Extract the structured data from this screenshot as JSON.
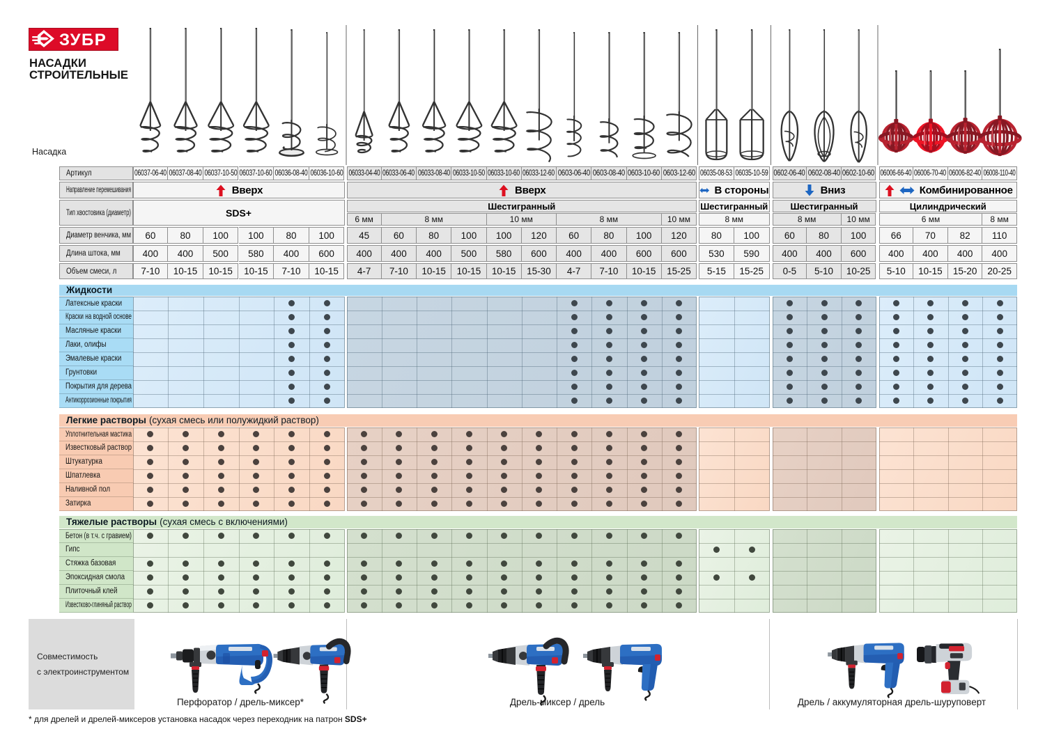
{
  "logo": {
    "text": "ЗУБР",
    "box_color": "#dd0b28",
    "border_color": "#a90d20"
  },
  "title": {
    "line1": "НАСАДКИ",
    "line2": "СТРОИТЕЛЬНЫЕ"
  },
  "row_labels": {
    "nasadka": "Насадка",
    "article": "Артикул",
    "direction": "Направление перемешивания",
    "shank": "Тип хвостовика (диаметр)",
    "diameter": "Диаметр венчика, мм",
    "length": "Длина штока, мм",
    "volume": "Объем смеси, л"
  },
  "groups": [
    {
      "direction": "Вверх",
      "icons": [
        "arrow-up-red"
      ],
      "shank_type": "SDS+",
      "type_merged": true,
      "shade": "light",
      "sizes": [],
      "columns": [
        {
          "article": "06037-06-40",
          "diameter": "60",
          "length": "400",
          "volume": "7-10",
          "mixer": "cone"
        },
        {
          "article": "06037-08-40",
          "diameter": "80",
          "length": "400",
          "volume": "10-15",
          "mixer": "cone"
        },
        {
          "article": "06037-10-50",
          "diameter": "100",
          "length": "500",
          "volume": "10-15",
          "mixer": "cone"
        },
        {
          "article": "06037-10-60",
          "diameter": "100",
          "length": "580",
          "volume": "10-15",
          "mixer": "cone"
        },
        {
          "article": "06036-08-40",
          "diameter": "80",
          "length": "400",
          "volume": "7-10",
          "mixer": "coil-disc"
        },
        {
          "article": "06036-10-60",
          "diameter": "100",
          "length": "600",
          "volume": "10-15",
          "mixer": "coil-ring"
        }
      ]
    },
    {
      "direction": "Вверх",
      "icons": [
        "arrow-up-red"
      ],
      "shank_type": "Шестигранный",
      "type_merged": false,
      "shade": "dark",
      "sizes": [
        {
          "label": "6 мм",
          "span": 1
        },
        {
          "label": "8 мм",
          "span": 3
        },
        {
          "label": "10 мм",
          "span": 2
        },
        {
          "label": "8 мм",
          "span": 3
        },
        {
          "label": "10 мм",
          "span": 1
        }
      ],
      "columns": [
        {
          "article": "06033-04-40",
          "diameter": "45",
          "length": "400",
          "volume": "4-7",
          "mixer": "cone-small"
        },
        {
          "article": "06033-06-40",
          "diameter": "60",
          "length": "400",
          "volume": "7-10",
          "mixer": "cone"
        },
        {
          "article": "06033-08-40",
          "diameter": "80",
          "length": "400",
          "volume": "10-15",
          "mixer": "cone"
        },
        {
          "article": "06033-10-50",
          "diameter": "100",
          "length": "500",
          "volume": "10-15",
          "mixer": "cone"
        },
        {
          "article": "06033-10-60",
          "diameter": "100",
          "length": "580",
          "volume": "10-15",
          "mixer": "cone"
        },
        {
          "article": "06033-12-60",
          "diameter": "120",
          "length": "600",
          "volume": "15-30",
          "mixer": "coil-big"
        },
        {
          "article": "0603-06-40",
          "diameter": "60",
          "length": "400",
          "volume": "4-7",
          "mixer": "coil-small"
        },
        {
          "article": "0603-08-40",
          "diameter": "80",
          "length": "400",
          "volume": "7-10",
          "mixer": "coil"
        },
        {
          "article": "0603-10-60",
          "diameter": "100",
          "length": "600",
          "volume": "10-15",
          "mixer": "coil-ring2"
        },
        {
          "article": "0603-12-60",
          "diameter": "120",
          "length": "600",
          "volume": "15-25",
          "mixer": "coil-open"
        }
      ]
    },
    {
      "direction": "В стороны",
      "icons": [
        "arrow-leftright-blue"
      ],
      "shank_type": "Шестигранный",
      "type_merged": false,
      "shade": "light",
      "sizes": [
        {
          "label": "8 мм",
          "span": 2
        }
      ],
      "columns": [
        {
          "article": "06035-08-53",
          "diameter": "80",
          "length": "530",
          "volume": "5-15",
          "mixer": "cage"
        },
        {
          "article": "06035-10-59",
          "diameter": "100",
          "length": "590",
          "volume": "15-25",
          "mixer": "cage"
        }
      ]
    },
    {
      "direction": "Вниз",
      "icons": [
        "arrow-down-blue"
      ],
      "shank_type": "Шестигранный",
      "type_merged": false,
      "shade": "dark",
      "sizes": [
        {
          "label": "8 мм",
          "span": 2
        },
        {
          "label": "10 мм",
          "span": 1
        }
      ],
      "columns": [
        {
          "article": "0602-06-40",
          "diameter": "60",
          "length": "400",
          "volume": "0-5",
          "mixer": "teardrop"
        },
        {
          "article": "0602-08-40",
          "diameter": "80",
          "length": "400",
          "volume": "5-10",
          "mixer": "teardrop-blades"
        },
        {
          "article": "0602-10-60",
          "diameter": "100",
          "length": "600",
          "volume": "10-25",
          "mixer": "teardrop-narrow"
        }
      ]
    },
    {
      "direction": "Комбинированное",
      "icons": [
        "arrow-up-red",
        "arrow-leftright-blue"
      ],
      "shank_type": "Цилиндрический",
      "type_merged": false,
      "shade": "light",
      "sizes": [
        {
          "label": "6 мм",
          "span": 3
        },
        {
          "label": "8 мм",
          "span": 1
        }
      ],
      "columns": [
        {
          "article": "06006-66-40",
          "diameter": "66",
          "length": "400",
          "volume": "5-10",
          "mixer": "ball"
        },
        {
          "article": "06006-70-40",
          "diameter": "70",
          "length": "400",
          "volume": "10-15",
          "mixer": "ball-bright"
        },
        {
          "article": "06006-82-40",
          "diameter": "82",
          "length": "400",
          "volume": "15-20",
          "mixer": "ball"
        },
        {
          "article": "06008-110-40",
          "diameter": "110",
          "length": "400",
          "volume": "20-25",
          "mixer": "ball-large"
        }
      ]
    }
  ],
  "sections": [
    {
      "id": "liquids",
      "title": "Жидкости",
      "subtitle": "",
      "band": "#a7d9f2",
      "label_bg": "#a9dcf5",
      "cell_light": "#dcedfa",
      "cell_light2": "#cfe5f6",
      "cell_dark": "#c7d6e2",
      "cell_dark2": "#c0d0dd",
      "line": "#4a6575",
      "dot": "#3e474e",
      "rows": [
        {
          "label": "Латексные краски",
          "dot_cols": [
            5,
            6,
            13,
            14,
            15,
            16,
            19,
            20,
            21,
            22,
            23,
            24,
            25
          ]
        },
        {
          "label": "Краски на водной основе",
          "dot_cols": [
            5,
            6,
            13,
            14,
            15,
            16,
            19,
            20,
            21,
            22,
            23,
            24,
            25
          ]
        },
        {
          "label": "Масляные краски",
          "dot_cols": [
            5,
            6,
            13,
            14,
            15,
            16,
            19,
            20,
            21,
            22,
            23,
            24,
            25
          ]
        },
        {
          "label": "Лаки, олифы",
          "dot_cols": [
            5,
            6,
            13,
            14,
            15,
            16,
            19,
            20,
            21,
            22,
            23,
            24,
            25
          ]
        },
        {
          "label": "Эмалевые краски",
          "dot_cols": [
            5,
            6,
            13,
            14,
            15,
            16,
            19,
            20,
            21,
            22,
            23,
            24,
            25
          ]
        },
        {
          "label": "Грунтовки",
          "dot_cols": [
            5,
            6,
            13,
            14,
            15,
            16,
            19,
            20,
            21,
            22,
            23,
            24,
            25
          ]
        },
        {
          "label": "Покрытия для дерева",
          "dot_cols": [
            5,
            6,
            13,
            14,
            15,
            16,
            19,
            20,
            21,
            22,
            23,
            24,
            25
          ]
        },
        {
          "label": "Антикоррозионные покрытия",
          "dot_cols": [
            5,
            6,
            13,
            14,
            15,
            16,
            19,
            20,
            21,
            22,
            23,
            24,
            25
          ]
        }
      ]
    },
    {
      "id": "light-mortars",
      "title": "Легкие растворы",
      "subtitle": " (сухая смесь или полужидкий раствор)",
      "band": "#f8ccb4",
      "label_bg": "#f8cbb2",
      "cell_light": "#fce3d3",
      "cell_light2": "#f9d8c3",
      "cell_dark": "#e7d1c5",
      "cell_dark2": "#e0c9bd",
      "line": "#7d6656",
      "dot": "#4b423e",
      "rows": [
        {
          "label": "Уплотнительная мастика",
          "dot_cols": [
            1,
            2,
            3,
            4,
            5,
            6,
            7,
            8,
            9,
            10,
            11,
            12,
            13,
            14,
            15,
            16
          ]
        },
        {
          "label": "Известковый раствор",
          "dot_cols": [
            1,
            2,
            3,
            4,
            5,
            6,
            7,
            8,
            9,
            10,
            11,
            12,
            13,
            14,
            15,
            16
          ]
        },
        {
          "label": "Штукатурка",
          "dot_cols": [
            1,
            2,
            3,
            4,
            5,
            6,
            7,
            8,
            9,
            10,
            11,
            12,
            13,
            14,
            15,
            16
          ]
        },
        {
          "label": "Шпатлевка",
          "dot_cols": [
            1,
            2,
            3,
            4,
            5,
            6,
            7,
            8,
            9,
            10,
            11,
            12,
            13,
            14,
            15,
            16
          ]
        },
        {
          "label": "Наливной пол",
          "dot_cols": [
            1,
            2,
            3,
            4,
            5,
            6,
            7,
            8,
            9,
            10,
            11,
            12,
            13,
            14,
            15,
            16
          ]
        },
        {
          "label": "Затирка",
          "dot_cols": [
            1,
            2,
            3,
            4,
            5,
            6,
            7,
            8,
            9,
            10,
            11,
            12,
            13,
            14,
            15,
            16
          ]
        }
      ]
    },
    {
      "id": "heavy-mortars",
      "title": "Тяжелые растворы",
      "subtitle": " (сухая смесь с включениями)",
      "band": "#d2e7ca",
      "label_bg": "#d0e6c8",
      "cell_light": "#eaf3e6",
      "cell_light2": "#dfeddb",
      "cell_dark": "#d4e0ce",
      "cell_dark2": "#ccd9c6",
      "line": "#5e7158",
      "dot": "#41483e",
      "rows": [
        {
          "label": "Бетон (в т.ч. с гравием)",
          "dot_cols": [
            1,
            2,
            3,
            4,
            5,
            6,
            7,
            8,
            9,
            10,
            11,
            12,
            13,
            14,
            15,
            16
          ]
        },
        {
          "label": "Гипс",
          "dot_cols": [
            17,
            18
          ]
        },
        {
          "label": "Стяжка базовая",
          "dot_cols": [
            1,
            2,
            3,
            4,
            5,
            6,
            7,
            8,
            9,
            10,
            11,
            12,
            13,
            14,
            15,
            16
          ]
        },
        {
          "label": "Эпоксидная смола",
          "dot_cols": [
            1,
            2,
            3,
            4,
            5,
            6,
            7,
            8,
            9,
            10,
            11,
            12,
            13,
            14,
            15,
            16,
            17,
            18
          ]
        },
        {
          "label": "Плиточный клей",
          "dot_cols": [
            1,
            2,
            3,
            4,
            5,
            6,
            7,
            8,
            9,
            10,
            11,
            12,
            13,
            14,
            15,
            16
          ]
        },
        {
          "label": "Известково-глиняный раствор",
          "dot_cols": [
            1,
            2,
            3,
            4,
            5,
            6,
            7,
            8,
            9,
            10,
            11,
            12,
            13,
            14,
            15,
            16
          ]
        }
      ]
    }
  ],
  "compatibility": {
    "label_line1": "Совместимость",
    "label_line2": "с электроинструментом",
    "captions": [
      "Перфоратор / дрель-миксер*",
      "Дрель-миксер / дрель",
      "Дрель / аккумуляторная дрель-шуруповерт"
    ],
    "footnote_text": "* для дрелей и дрелей-миксеров установка насадок через переходник на патрон ",
    "footnote_bold": "SDS+"
  },
  "colors": {
    "brand_red": "#dd0b28",
    "arrow_red": "#dd1020",
    "arrow_blue": "#1d66c2",
    "hdr_label_bg": "#e3e3e3",
    "hdr_light_bg": "#f5f5f5",
    "hdr_dark_bg": "#e5e5e5",
    "hdr_border": "#8e8e8e",
    "compat_box_bg": "#dcdcdc",
    "separator_grey": "#9b9b9b",
    "mixer_metal": "#333333"
  }
}
